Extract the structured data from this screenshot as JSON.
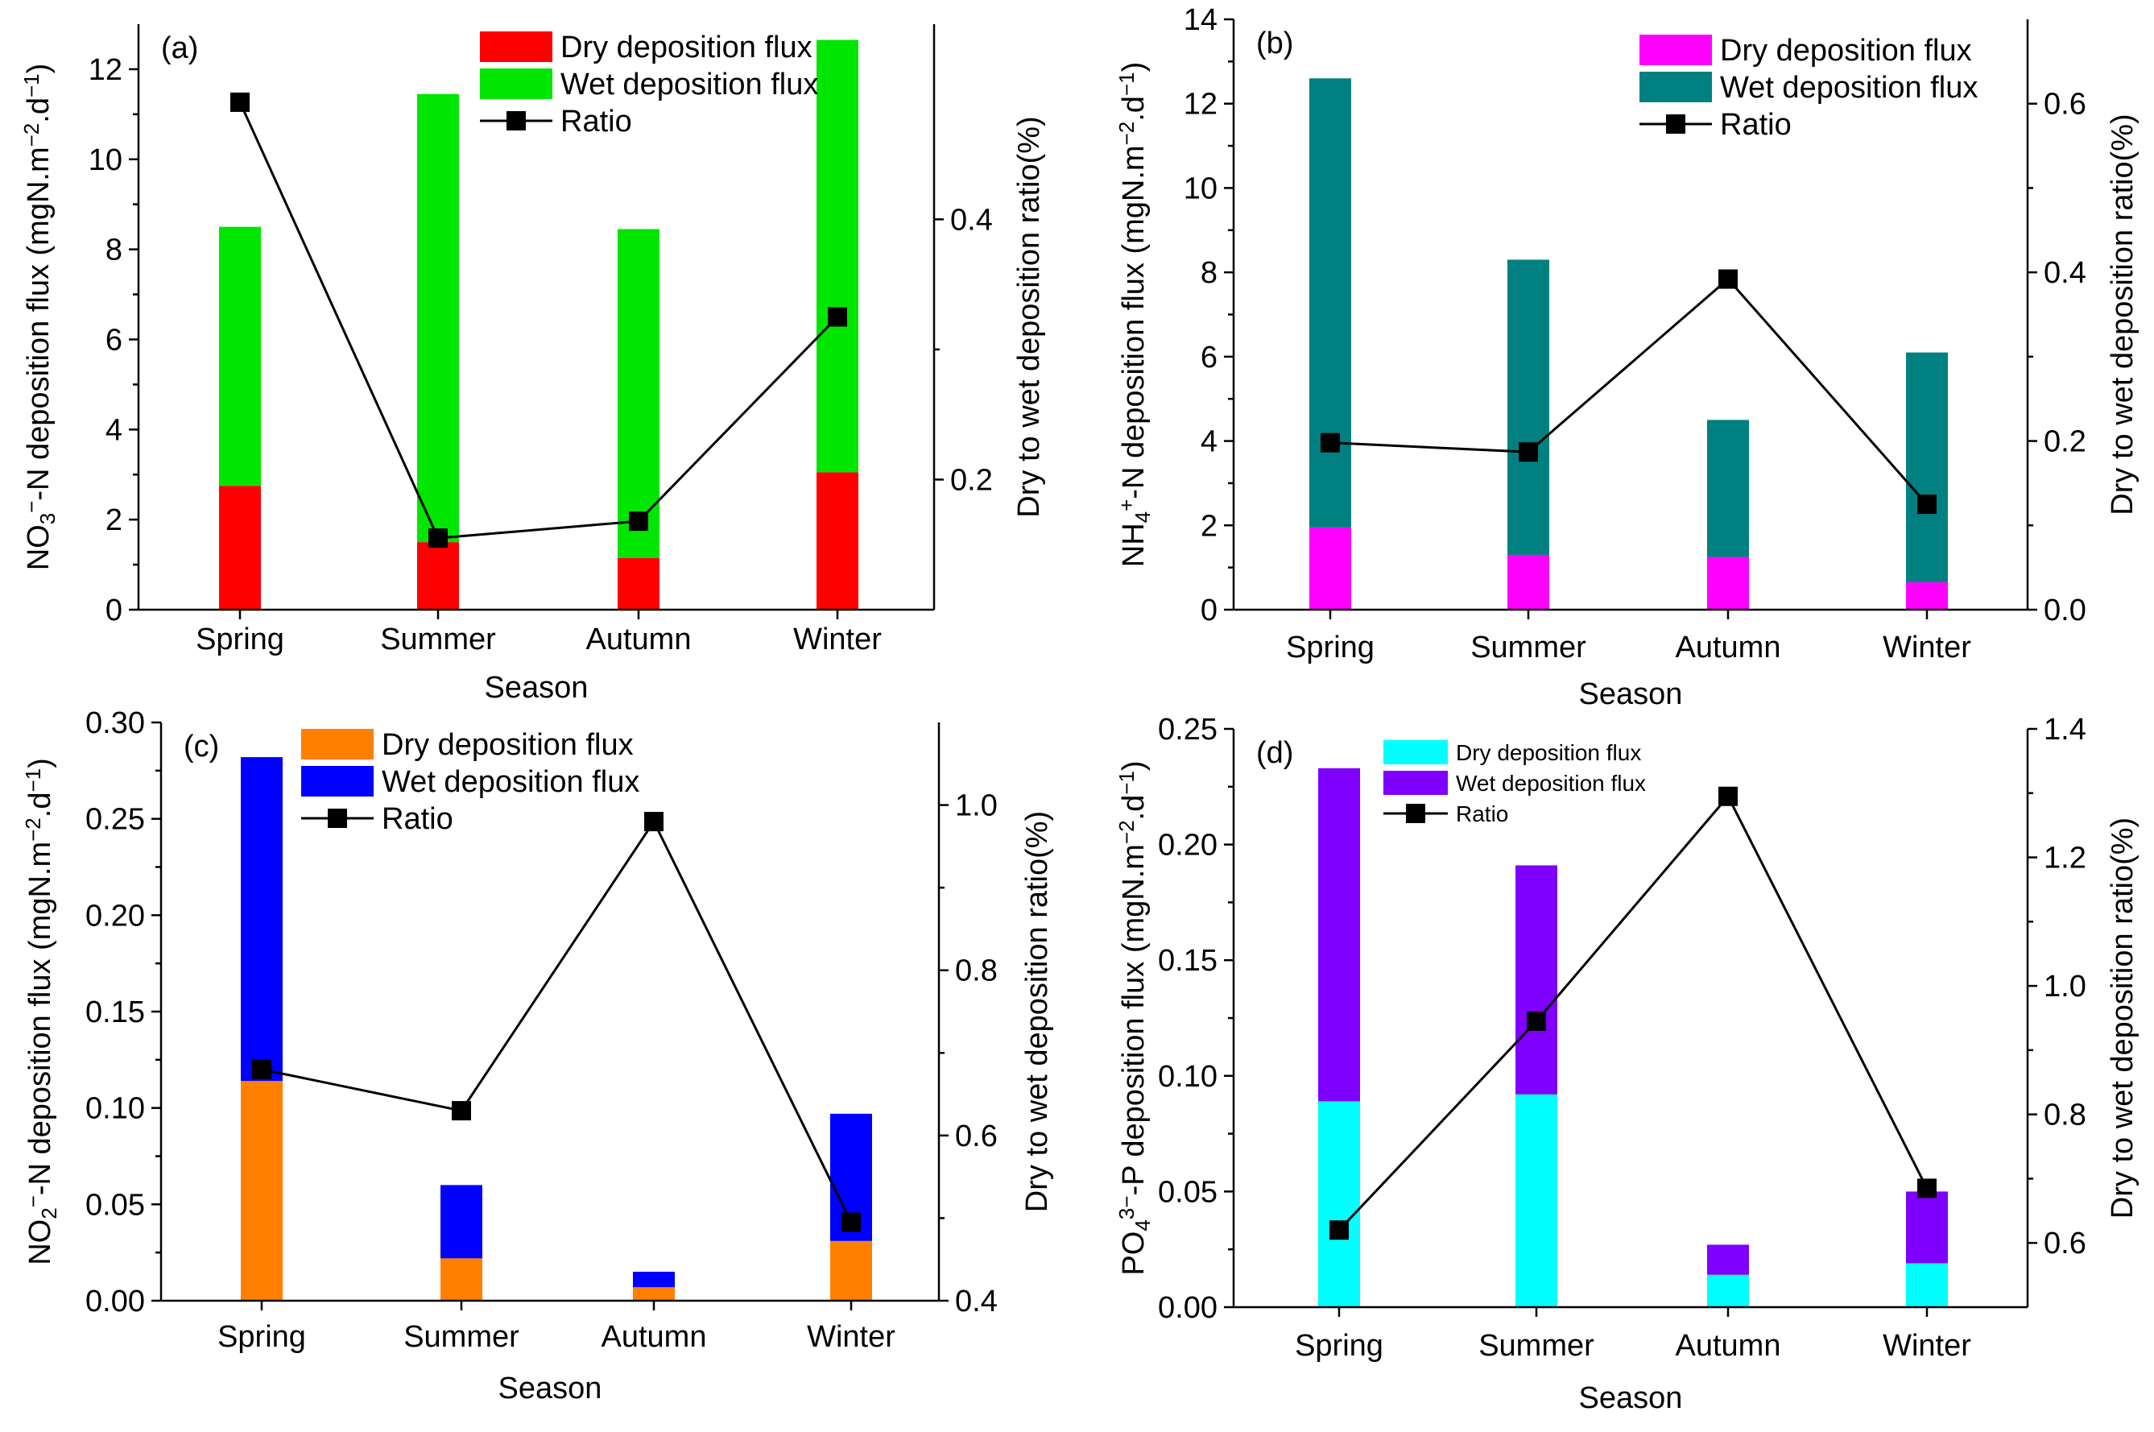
{
  "chart_data": [
    {
      "type": "bar",
      "panel_label": "(a)",
      "categories": [
        "Spring",
        "Summer",
        "Autumn",
        "Winter"
      ],
      "xlabel": "Season",
      "ylabel": {
        "pre": "NO",
        "sub": "3",
        "sup": "−",
        "post": "-N deposition flux (mgN.m",
        "sup2": "−2",
        "mid": ".d",
        "sup3": "−1",
        "end": ")"
      },
      "y2label": "Dry to wet deposition ratio(%)",
      "ylim": [
        0,
        13
      ],
      "yticks": [
        "0",
        "2",
        "4",
        "6",
        "8",
        "10",
        "12"
      ],
      "yticks_values": [
        0,
        2,
        4,
        6,
        8,
        10,
        12
      ],
      "y2lim": [
        0.1,
        0.55
      ],
      "y2ticks": [
        "0.2",
        "0.4"
      ],
      "y2ticks_values": [
        0.2,
        0.4
      ],
      "legend": {
        "dry": "Dry deposition flux",
        "wet": "Wet deposition flux",
        "ratio": "Ratio"
      },
      "colors": {
        "dry": "#ff0000",
        "wet": "#00e600"
      },
      "series": [
        {
          "name": "Dry deposition flux",
          "values": [
            2.75,
            1.5,
            1.15,
            3.05
          ]
        },
        {
          "name": "Wet deposition flux",
          "values": [
            5.75,
            9.95,
            7.3,
            9.6
          ]
        },
        {
          "name": "Ratio",
          "axis": "right",
          "values": [
            0.49,
            0.155,
            0.168,
            0.325
          ]
        }
      ]
    },
    {
      "type": "bar",
      "panel_label": "(b)",
      "categories": [
        "Spring",
        "Summer",
        "Autumn",
        "Winter"
      ],
      "xlabel": "Season",
      "ylabel": {
        "pre": "NH",
        "sub": "4",
        "sup": "+",
        "post": "-N deposition flux (mgN.m",
        "sup2": "−2",
        "mid": ".d",
        "sup3": "−1",
        "end": ")"
      },
      "y2label": "Dry to wet deposition ratio(%)",
      "ylim": [
        0,
        14
      ],
      "yticks": [
        "0",
        "2",
        "4",
        "6",
        "8",
        "10",
        "12",
        "14"
      ],
      "yticks_values": [
        0,
        2,
        4,
        6,
        8,
        10,
        12,
        14
      ],
      "y2lim": [
        0,
        0.7
      ],
      "y2ticks": [
        "0.0",
        "0.2",
        "0.4",
        "0.6"
      ],
      "y2ticks_values": [
        0,
        0.2,
        0.4,
        0.6
      ],
      "legend": {
        "dry": "Dry deposition flux",
        "wet": "Wet deposition flux",
        "ratio": "Ratio"
      },
      "colors": {
        "dry": "#ff00ff",
        "wet": "#008080"
      },
      "series": [
        {
          "name": "Dry deposition flux",
          "values": [
            1.95,
            1.3,
            1.25,
            0.65
          ]
        },
        {
          "name": "Wet deposition flux",
          "values": [
            10.65,
            7.0,
            3.25,
            5.45
          ]
        },
        {
          "name": "Ratio",
          "axis": "right",
          "values": [
            0.198,
            0.187,
            0.392,
            0.125
          ]
        }
      ]
    },
    {
      "type": "bar",
      "panel_label": "(c)",
      "categories": [
        "Spring",
        "Summer",
        "Autumn",
        "Winter"
      ],
      "xlabel": "Season",
      "ylabel": {
        "pre": "NO",
        "sub": "2",
        "sup": "−",
        "post": "-N deposition flux (mgN.m",
        "sup2": "−2",
        "mid": ".d",
        "sup3": "−1",
        "end": ")"
      },
      "y2label": "Dry to wet deposition ratio(%)",
      "ylim": [
        0,
        0.3
      ],
      "yticks": [
        "0.00",
        "0.05",
        "0.10",
        "0.15",
        "0.20",
        "0.25",
        "0.30"
      ],
      "yticks_values": [
        0,
        0.05,
        0.1,
        0.15,
        0.2,
        0.25,
        0.3
      ],
      "y2lim": [
        0.4,
        1.1
      ],
      "y2ticks": [
        "0.4",
        "0.6",
        "0.8",
        "1.0"
      ],
      "y2ticks_values": [
        0.4,
        0.6,
        0.8,
        1.0
      ],
      "legend": {
        "dry": "Dry deposition flux",
        "wet": "Wet deposition flux",
        "ratio": "Ratio"
      },
      "colors": {
        "dry": "#ff8000",
        "wet": "#0000ff"
      },
      "series": [
        {
          "name": "Dry deposition flux",
          "values": [
            0.114,
            0.022,
            0.007,
            0.031
          ]
        },
        {
          "name": "Wet deposition flux",
          "values": [
            0.168,
            0.038,
            0.008,
            0.066
          ]
        },
        {
          "name": "Ratio",
          "axis": "right",
          "values": [
            0.68,
            0.63,
            0.98,
            0.495
          ]
        }
      ]
    },
    {
      "type": "bar",
      "panel_label": "(d)",
      "categories": [
        "Spring",
        "Summer",
        "Autumn",
        "Winter"
      ],
      "xlabel": "Season",
      "ylabel": {
        "pre": "PO",
        "sub": "4",
        "sup": "3−",
        "post": "-P deposition flux (mgN.m",
        "sup2": "−2",
        "mid": ".d",
        "sup3": "−1",
        "end": ")"
      },
      "y2label": "Dry to wet deposition ratio(%)",
      "ylim": [
        0,
        0.25
      ],
      "yticks": [
        "0.00",
        "0.05",
        "0.10",
        "0.15",
        "0.20",
        "0.25"
      ],
      "yticks_values": [
        0,
        0.05,
        0.1,
        0.15,
        0.2,
        0.25
      ],
      "y2lim": [
        0.5,
        1.4
      ],
      "y2ticks": [
        "0.6",
        "0.8",
        "1.0",
        "1.2",
        "1.4"
      ],
      "y2ticks_values": [
        0.6,
        0.8,
        1.0,
        1.2,
        1.4
      ],
      "legend": {
        "dry": "Dry deposition flux",
        "wet": "Wet deposition flux",
        "ratio": "Ratio"
      },
      "colors": {
        "dry": "#00ffff",
        "wet": "#8000ff"
      },
      "series": [
        {
          "name": "Dry deposition flux",
          "values": [
            0.089,
            0.092,
            0.014,
            0.019
          ]
        },
        {
          "name": "Wet deposition flux",
          "values": [
            0.144,
            0.099,
            0.013,
            0.031
          ]
        },
        {
          "name": "Ratio",
          "axis": "right",
          "values": [
            0.62,
            0.945,
            1.295,
            0.685
          ]
        }
      ]
    }
  ]
}
